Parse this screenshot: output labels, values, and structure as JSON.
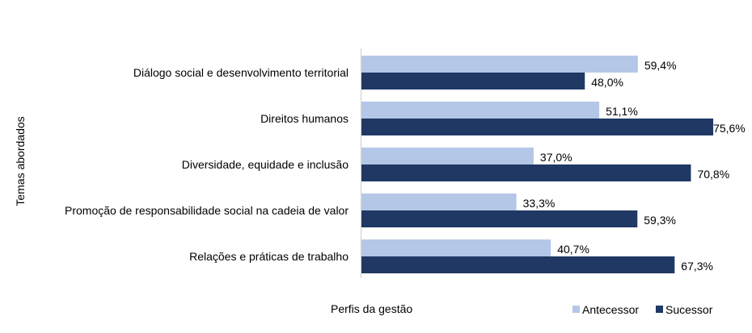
{
  "chart_data": {
    "type": "bar",
    "orientation": "horizontal",
    "title": "",
    "xlabel": "Perfis da gestão",
    "ylabel": "Temas abordados",
    "categories": [
      "Diálogo social e desenvolvimento territorial",
      "Direitos humanos",
      "Diversidade, equidade e inclusão",
      "Promoção de responsabilidade social na cadeia de valor",
      "Relações e práticas de trabalho"
    ],
    "series": [
      {
        "name": "Antecessor",
        "color": "#B4C7E7",
        "values": [
          59.4,
          51.1,
          37.0,
          33.3,
          40.7
        ],
        "labels": [
          "59,4%",
          "51,1%",
          "37,0%",
          "33,3%",
          "40,7%"
        ]
      },
      {
        "name": "Sucessor",
        "color": "#203864",
        "values": [
          48.0,
          75.6,
          70.8,
          59.3,
          67.3
        ],
        "labels": [
          "48,0%",
          "75,6%",
          "70,8%",
          "59,3%",
          "67,3%"
        ]
      }
    ],
    "xlim": [
      0,
      80
    ],
    "grid": false,
    "legend": "bottom-right"
  }
}
